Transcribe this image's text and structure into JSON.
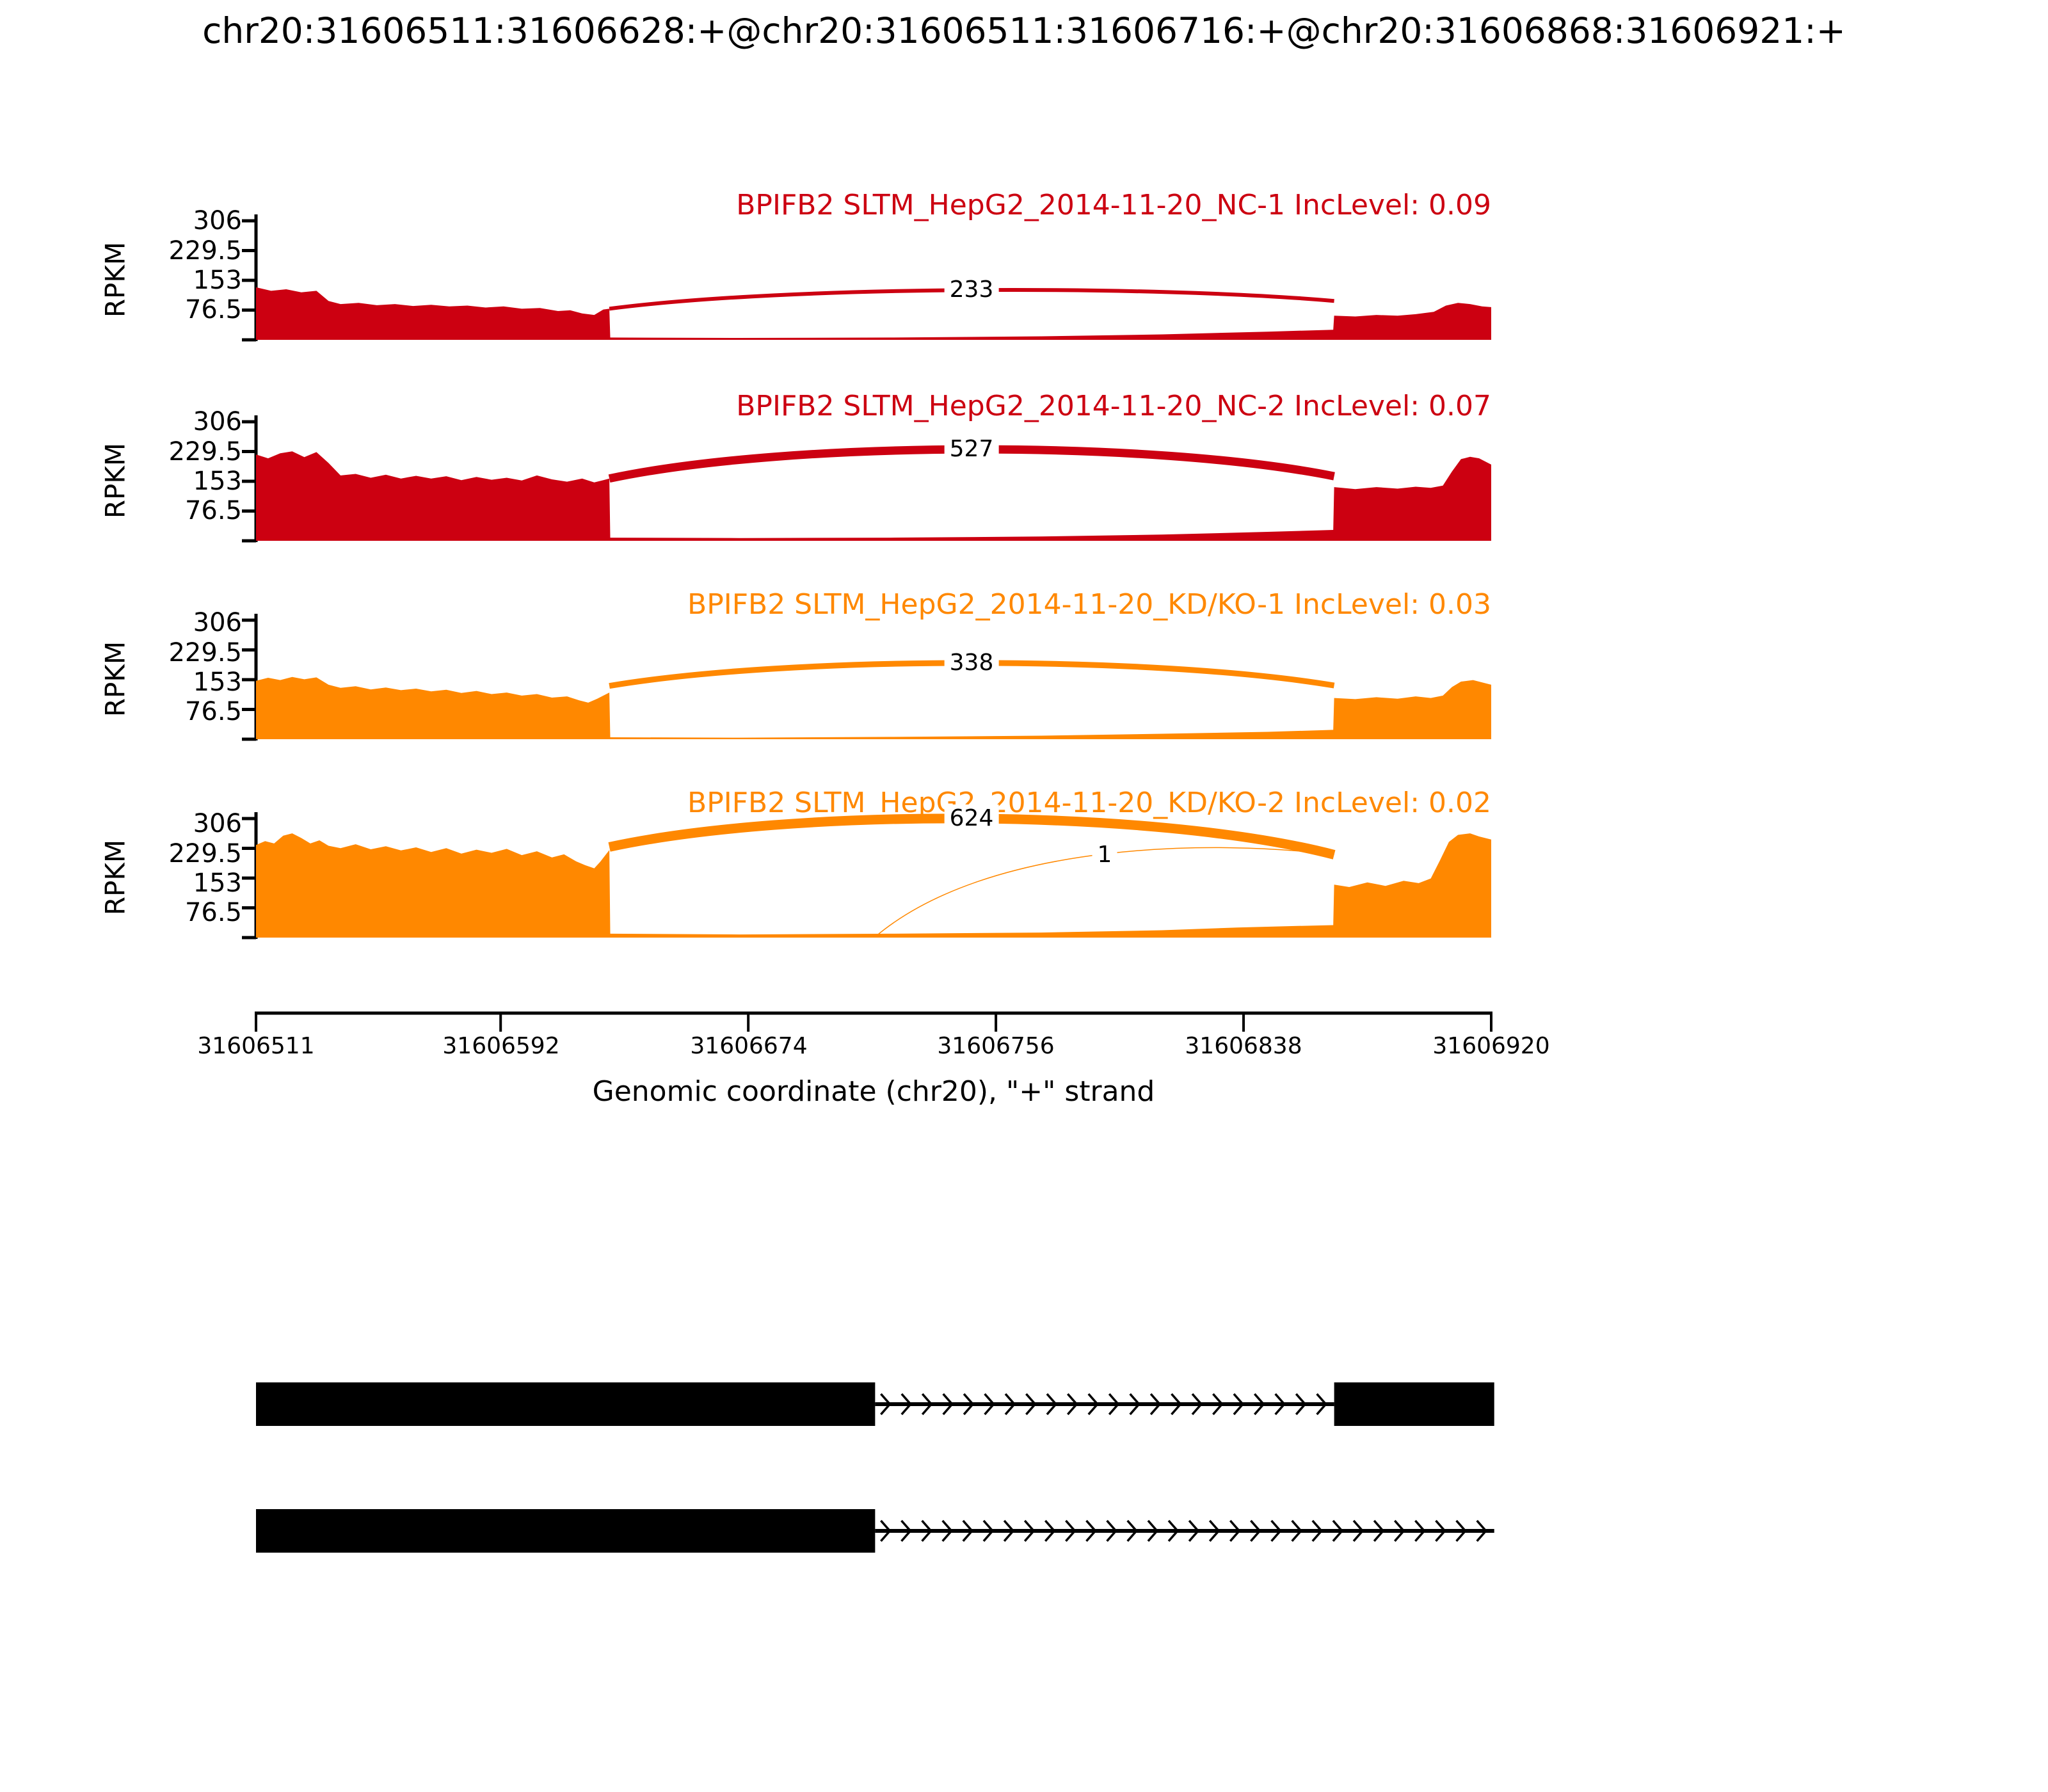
{
  "title": "chr20:31606511:31606628:+@chr20:31606511:31606716:+@chr20:31606868:31606921:+",
  "colors": {
    "red": "#CC0011",
    "orange": "#FF8800",
    "black": "#000000"
  },
  "chart_data": {
    "type": "area",
    "title": "chr20:31606511:31606628:+@chr20:31606511:31606716:+@chr20:31606868:31606921:+",
    "ylabel": "RPKM",
    "xlabel": "Genomic coordinate (chr20), \"+\" strand",
    "yticks": [
      "306",
      "229.5",
      "153",
      "76.5"
    ],
    "ytick_values": [
      306,
      229.5,
      153,
      76.5
    ],
    "ylim": [
      0,
      318
    ],
    "xticks": [
      "31606511",
      "31606592",
      "31606674",
      "31606756",
      "31606838",
      "31606920"
    ],
    "xtick_values": [
      31606511,
      31606592,
      31606674,
      31606756,
      31606838,
      31606920
    ],
    "x_range_bp": [
      31606511,
      31606920
    ],
    "grid": false,
    "legend": "none",
    "tracks": [
      {
        "label": "BPIFB2 SLTM_HepG2_2014-11-20_NC-1 IncLevel: 0.09",
        "sample": "SLTM_HepG2_2014-11-20_NC-1",
        "gene": "BPIFB2",
        "inc_level": 0.09,
        "color": "#CC0011",
        "coverage_rpkm": [
          [
            0,
            135
          ],
          [
            5,
            126
          ],
          [
            10,
            130
          ],
          [
            15,
            122
          ],
          [
            20,
            126
          ],
          [
            24,
            100
          ],
          [
            28,
            92
          ],
          [
            34,
            95
          ],
          [
            40,
            89
          ],
          [
            46,
            92
          ],
          [
            52,
            87
          ],
          [
            58,
            90
          ],
          [
            64,
            86
          ],
          [
            70,
            88
          ],
          [
            76,
            83
          ],
          [
            82,
            86
          ],
          [
            88,
            80
          ],
          [
            94,
            82
          ],
          [
            100,
            74
          ],
          [
            104,
            76
          ],
          [
            108,
            68
          ],
          [
            112,
            64
          ],
          [
            115,
            78
          ],
          [
            117,
            80
          ],
          [
            117.3,
            6
          ],
          [
            160,
            5
          ],
          [
            210,
            6
          ],
          [
            260,
            9
          ],
          [
            300,
            14
          ],
          [
            335,
            21
          ],
          [
            356.7,
            26
          ],
          [
            357,
            62
          ],
          [
            364,
            60
          ],
          [
            371,
            64
          ],
          [
            378,
            62
          ],
          [
            384,
            66
          ],
          [
            390,
            72
          ],
          [
            394,
            88
          ],
          [
            398,
            95
          ],
          [
            402,
            92
          ],
          [
            406,
            86
          ],
          [
            409,
            84
          ]
        ],
        "junctions": [
          {
            "count": 233,
            "from_bp": 31606628,
            "to_bp": 31606868,
            "anchor_rpkm": [
              80,
              100
            ],
            "apex_rpkm": 128,
            "stroke_px": 6
          }
        ]
      },
      {
        "label": "BPIFB2 SLTM_HepG2_2014-11-20_NC-2 IncLevel: 0.07",
        "sample": "SLTM_HepG2_2014-11-20_NC-2",
        "gene": "BPIFB2",
        "inc_level": 0.07,
        "color": "#CC0011",
        "coverage_rpkm": [
          [
            0,
            222
          ],
          [
            4,
            212
          ],
          [
            8,
            225
          ],
          [
            12,
            230
          ],
          [
            16,
            215
          ],
          [
            20,
            228
          ],
          [
            24,
            200
          ],
          [
            28,
            168
          ],
          [
            33,
            172
          ],
          [
            38,
            162
          ],
          [
            43,
            170
          ],
          [
            48,
            160
          ],
          [
            53,
            167
          ],
          [
            58,
            160
          ],
          [
            63,
            166
          ],
          [
            68,
            156
          ],
          [
            73,
            164
          ],
          [
            78,
            157
          ],
          [
            83,
            162
          ],
          [
            88,
            155
          ],
          [
            93,
            168
          ],
          [
            98,
            158
          ],
          [
            103,
            152
          ],
          [
            108,
            160
          ],
          [
            112,
            150
          ],
          [
            115,
            156
          ],
          [
            117,
            160
          ],
          [
            117.3,
            8
          ],
          [
            160,
            7
          ],
          [
            210,
            8
          ],
          [
            260,
            11
          ],
          [
            300,
            16
          ],
          [
            335,
            23
          ],
          [
            356.7,
            28
          ],
          [
            357,
            138
          ],
          [
            364,
            133
          ],
          [
            371,
            138
          ],
          [
            378,
            134
          ],
          [
            384,
            139
          ],
          [
            389,
            136
          ],
          [
            393,
            142
          ],
          [
            396,
            178
          ],
          [
            399,
            210
          ],
          [
            402,
            216
          ],
          [
            405,
            212
          ],
          [
            409,
            196
          ]
        ],
        "junctions": [
          {
            "count": 527,
            "from_bp": 31606628,
            "to_bp": 31606868,
            "anchor_rpkm": [
              160,
              166
            ],
            "apex_rpkm": 235,
            "stroke_px": 13
          }
        ]
      },
      {
        "label": "BPIFB2 SLTM_HepG2_2014-11-20_KD/KO-1 IncLevel: 0.03",
        "sample": "SLTM_HepG2_2014-11-20_KD/KO-1",
        "gene": "BPIFB2",
        "inc_level": 0.03,
        "color": "#FF8800",
        "coverage_rpkm": [
          [
            0,
            150
          ],
          [
            4,
            158
          ],
          [
            8,
            152
          ],
          [
            12,
            160
          ],
          [
            16,
            154
          ],
          [
            20,
            159
          ],
          [
            24,
            140
          ],
          [
            28,
            132
          ],
          [
            33,
            136
          ],
          [
            38,
            128
          ],
          [
            43,
            133
          ],
          [
            48,
            126
          ],
          [
            53,
            130
          ],
          [
            58,
            123
          ],
          [
            63,
            127
          ],
          [
            68,
            119
          ],
          [
            73,
            124
          ],
          [
            78,
            116
          ],
          [
            83,
            120
          ],
          [
            88,
            112
          ],
          [
            93,
            116
          ],
          [
            98,
            107
          ],
          [
            103,
            110
          ],
          [
            107,
            100
          ],
          [
            110,
            94
          ],
          [
            113,
            104
          ],
          [
            115,
            112
          ],
          [
            117,
            120
          ],
          [
            117.3,
            5
          ],
          [
            160,
            4
          ],
          [
            210,
            6
          ],
          [
            260,
            9
          ],
          [
            300,
            14
          ],
          [
            335,
            19
          ],
          [
            356.7,
            24
          ],
          [
            357,
            106
          ],
          [
            364,
            103
          ],
          [
            371,
            108
          ],
          [
            378,
            104
          ],
          [
            384,
            110
          ],
          [
            389,
            106
          ],
          [
            393,
            112
          ],
          [
            396,
            134
          ],
          [
            399,
            148
          ],
          [
            403,
            152
          ],
          [
            406,
            146
          ],
          [
            409,
            140
          ]
        ],
        "junctions": [
          {
            "count": 338,
            "from_bp": 31606628,
            "to_bp": 31606868,
            "anchor_rpkm": [
              137,
              138
            ],
            "apex_rpkm": 196,
            "stroke_px": 9
          }
        ]
      },
      {
        "label": "BPIFB2 SLTM_HepG2_2014-11-20_KD/KO-2 IncLevel: 0.02",
        "sample": "SLTM_HepG2_2014-11-20_KD/KO-2",
        "gene": "BPIFB2",
        "inc_level": 0.02,
        "color": "#FF8800",
        "coverage_rpkm": [
          [
            0,
            238
          ],
          [
            3,
            248
          ],
          [
            6,
            242
          ],
          [
            9,
            262
          ],
          [
            12,
            268
          ],
          [
            15,
            256
          ],
          [
            18,
            242
          ],
          [
            21,
            250
          ],
          [
            24,
            236
          ],
          [
            28,
            230
          ],
          [
            33,
            240
          ],
          [
            38,
            227
          ],
          [
            43,
            235
          ],
          [
            48,
            224
          ],
          [
            53,
            232
          ],
          [
            58,
            220
          ],
          [
            63,
            230
          ],
          [
            68,
            216
          ],
          [
            73,
            226
          ],
          [
            78,
            218
          ],
          [
            83,
            228
          ],
          [
            88,
            212
          ],
          [
            93,
            222
          ],
          [
            98,
            206
          ],
          [
            102,
            214
          ],
          [
            106,
            196
          ],
          [
            109,
            186
          ],
          [
            112,
            178
          ],
          [
            114,
            195
          ],
          [
            116,
            215
          ],
          [
            117,
            225
          ],
          [
            117.3,
            10
          ],
          [
            160,
            8
          ],
          [
            210,
            10
          ],
          [
            260,
            13
          ],
          [
            300,
            19
          ],
          [
            325,
            26
          ],
          [
            345,
            30
          ],
          [
            356.7,
            32
          ],
          [
            357,
            136
          ],
          [
            362,
            130
          ],
          [
            368,
            142
          ],
          [
            374,
            133
          ],
          [
            380,
            146
          ],
          [
            385,
            140
          ],
          [
            389,
            152
          ],
          [
            392,
            198
          ],
          [
            395,
            246
          ],
          [
            398,
            264
          ],
          [
            402,
            268
          ],
          [
            405,
            260
          ],
          [
            409,
            252
          ]
        ],
        "junctions": [
          {
            "count": 624,
            "from_bp": 31606628,
            "to_bp": 31606868,
            "anchor_rpkm": [
              233,
              213
            ],
            "apex_rpkm": 306,
            "stroke_px": 15
          },
          {
            "count": 1,
            "from_bp": 31606716,
            "to_bp": 31606868,
            "anchor_rpkm": [
              2,
              213
            ],
            "apex_rpkm": 215,
            "stroke_px": 1.5
          }
        ]
      }
    ],
    "transcripts": [
      {
        "exons_bp": [
          [
            31606511,
            31606716
          ],
          [
            31606868,
            31606921
          ]
        ],
        "intron_bp": [
          31606716,
          31606868
        ],
        "intron_arrows": 22
      },
      {
        "exons_bp": [
          [
            31606511,
            31606716
          ]
        ],
        "intron_bp": [
          31606716,
          31606921
        ],
        "intron_arrows": 30
      }
    ]
  }
}
